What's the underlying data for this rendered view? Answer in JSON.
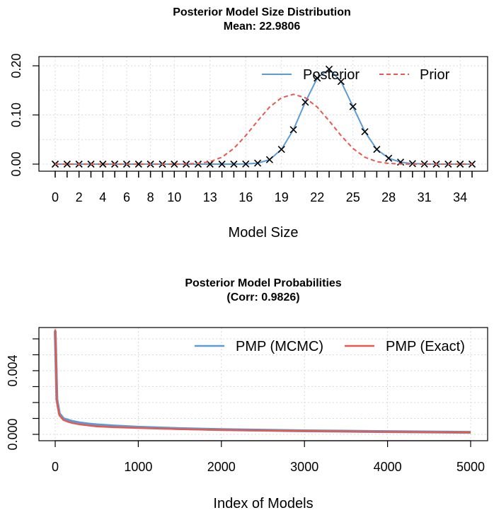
{
  "chart_data": [
    {
      "type": "line",
      "title": "Posterior Model Size Distribution",
      "subtitle": "Mean: 22.9806",
      "xlabel": "Model Size",
      "ylabel": "",
      "xlim": [
        0,
        35
      ],
      "ylim": [
        0,
        0.2
      ],
      "x_tick_labels": [
        "0",
        "2",
        "4",
        "6",
        "8",
        "10",
        "13",
        "16",
        "19",
        "22",
        "25",
        "28",
        "31",
        "34"
      ],
      "x_tick_values": [
        0,
        2,
        4,
        6,
        8,
        10,
        13,
        16,
        19,
        22,
        25,
        28,
        31,
        34
      ],
      "y_tick_labels": [
        "0.00",
        "0.10",
        "0.20"
      ],
      "y_tick_values": [
        0,
        0.1,
        0.2
      ],
      "grid": true,
      "legend_position": "top-right",
      "x": [
        0,
        1,
        2,
        3,
        4,
        5,
        6,
        7,
        8,
        9,
        10,
        11,
        12,
        13,
        14,
        15,
        16,
        17,
        18,
        19,
        20,
        21,
        22,
        23,
        24,
        25,
        26,
        27,
        28,
        29,
        30,
        31,
        32,
        33,
        34,
        35
      ],
      "series": [
        {
          "name": "Posterior",
          "color": "#5b9bd5",
          "line": "solid",
          "markers": "x",
          "values": [
            0,
            0,
            0,
            0,
            0,
            0,
            0,
            0,
            0,
            0,
            0,
            0,
            0,
            0,
            0,
            0,
            0.0003,
            0.002,
            0.009,
            0.03,
            0.07,
            0.126,
            0.175,
            0.193,
            0.168,
            0.117,
            0.066,
            0.03,
            0.012,
            0.004,
            0.001,
            0.0003,
            0,
            0,
            0,
            0
          ]
        },
        {
          "name": "Prior",
          "color": "#e8584c",
          "line": "dashed",
          "markers": "none",
          "values": [
            0,
            0,
            0,
            0,
            0,
            0,
            0,
            0,
            0,
            0,
            0,
            0.0003,
            0.0015,
            0.005,
            0.014,
            0.032,
            0.058,
            0.088,
            0.116,
            0.135,
            0.142,
            0.135,
            0.116,
            0.088,
            0.058,
            0.032,
            0.014,
            0.005,
            0.0015,
            0.0003,
            0,
            0,
            0,
            0,
            0,
            0
          ]
        }
      ]
    },
    {
      "type": "line",
      "title": "Posterior Model Probabilities",
      "subtitle": "(Corr: 0.9826)",
      "xlabel": "Index of Models",
      "ylabel": "",
      "xlim": [
        0,
        5000
      ],
      "ylim": [
        0,
        0.006
      ],
      "x_tick_labels": [
        "0",
        "1000",
        "2000",
        "3000",
        "4000",
        "5000"
      ],
      "x_tick_values": [
        0,
        1000,
        2000,
        3000,
        4000,
        5000
      ],
      "y_tick_labels": [
        "0.000",
        "0.004"
      ],
      "y_tick_values": [
        0,
        0.004
      ],
      "y_minor_ticks": [
        0.001,
        0.002,
        0.003,
        0.005,
        0.006
      ],
      "grid": true,
      "legend_position": "top-right",
      "x": [
        0,
        20,
        50,
        100,
        150,
        200,
        300,
        400,
        500,
        700,
        1000,
        1500,
        2000,
        2500,
        3000,
        3500,
        4000,
        4500,
        5000
      ],
      "series": [
        {
          "name": "PMP (MCMC)",
          "color": "#5b9bd5",
          "line": "solid",
          "values": [
            0.0065,
            0.0022,
            0.0013,
            0.00098,
            0.0009,
            0.00082,
            0.00072,
            0.00065,
            0.0006,
            0.00053,
            0.00045,
            0.00036,
            0.0003,
            0.00026,
            0.00022,
            0.0002,
            0.00017,
            0.00015,
            0.00013
          ]
        },
        {
          "name": "PMP (Exact)",
          "color": "#e8584c",
          "line": "solid",
          "values": [
            0.0066,
            0.0021,
            0.0012,
            0.0009,
            0.0008,
            0.00072,
            0.00062,
            0.00056,
            0.0005,
            0.00045,
            0.0004,
            0.00033,
            0.00028,
            0.00024,
            0.00021,
            0.00019,
            0.00016,
            0.00014,
            0.00012
          ]
        }
      ]
    }
  ]
}
